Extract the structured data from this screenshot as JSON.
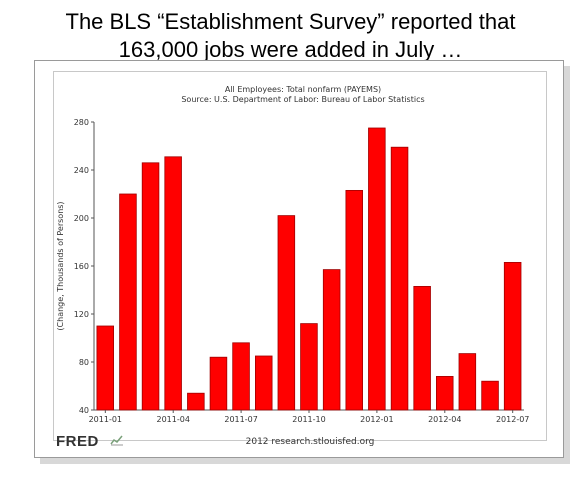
{
  "headline": {
    "line1": "The BLS “Establishment Survey” reported that",
    "line2": "163,000 jobs were added in July …"
  },
  "chart_data": {
    "type": "bar",
    "title": "All Employees: Total nonfarm (PAYEMS)",
    "subtitle": "Source: U.S. Department of Labor: Bureau of Labor Statistics",
    "ylabel": "(Change, Thousands of Persons)",
    "xlabel": "",
    "ylim": [
      40,
      280
    ],
    "yticks": [
      40,
      80,
      120,
      160,
      200,
      240,
      280
    ],
    "categories": [
      "2011-01",
      "2011-02",
      "2011-03",
      "2011-04",
      "2011-05",
      "2011-06",
      "2011-07",
      "2011-08",
      "2011-09",
      "2011-10",
      "2011-11",
      "2011-12",
      "2012-01",
      "2012-02",
      "2012-03",
      "2012-04",
      "2012-05",
      "2012-06",
      "2012-07"
    ],
    "xtick_labels": [
      "2011-01",
      "2011-04",
      "2011-07",
      "2011-10",
      "2012-01",
      "2012-04",
      "2012-07"
    ],
    "values": [
      110,
      220,
      246,
      251,
      54,
      84,
      96,
      85,
      202,
      112,
      157,
      223,
      275,
      259,
      143,
      68,
      87,
      64,
      163
    ],
    "bar_color": "#ff0000",
    "bar_stroke": "#a00000",
    "grid": false,
    "legend": "none"
  },
  "footer": {
    "logo": "FRED",
    "credit": "2012 research.stlouisfed.org"
  }
}
